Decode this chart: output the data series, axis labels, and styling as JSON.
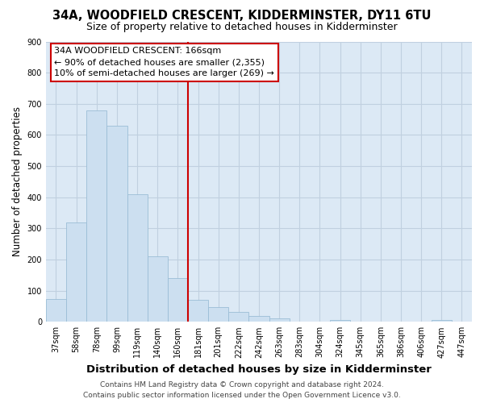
{
  "title": "34A, WOODFIELD CRESCENT, KIDDERMINSTER, DY11 6TU",
  "subtitle": "Size of property relative to detached houses in Kidderminster",
  "xlabel": "Distribution of detached houses by size in Kidderminster",
  "ylabel": "Number of detached properties",
  "footer_line1": "Contains HM Land Registry data © Crown copyright and database right 2024.",
  "footer_line2": "Contains public sector information licensed under the Open Government Licence v3.0.",
  "bar_labels": [
    "37sqm",
    "58sqm",
    "78sqm",
    "99sqm",
    "119sqm",
    "140sqm",
    "160sqm",
    "181sqm",
    "201sqm",
    "222sqm",
    "242sqm",
    "263sqm",
    "283sqm",
    "304sqm",
    "324sqm",
    "345sqm",
    "365sqm",
    "386sqm",
    "406sqm",
    "427sqm",
    "447sqm"
  ],
  "bar_values": [
    72,
    320,
    680,
    630,
    410,
    210,
    140,
    70,
    48,
    33,
    20,
    10,
    0,
    0,
    5,
    0,
    0,
    0,
    0,
    5,
    0
  ],
  "bar_color": "#ccdff0",
  "bar_edge_color": "#9bbdd6",
  "vline_pos": 7.0,
  "vline_color": "#cc0000",
  "annotation_title": "34A WOODFIELD CRESCENT: 166sqm",
  "annotation_line1": "← 90% of detached houses are smaller (2,355)",
  "annotation_line2": "10% of semi-detached houses are larger (269) →",
  "annotation_box_edge": "#cc0000",
  "ylim": [
    0,
    900
  ],
  "yticks": [
    0,
    100,
    200,
    300,
    400,
    500,
    600,
    700,
    800,
    900
  ],
  "background_color": "#ffffff",
  "plot_bg_color": "#dce9f5",
  "grid_color": "#c0d0e0",
  "title_fontsize": 10.5,
  "subtitle_fontsize": 9,
  "xlabel_fontsize": 9.5,
  "ylabel_fontsize": 8.5,
  "tick_fontsize": 7,
  "footer_fontsize": 6.5,
  "annotation_fontsize": 8
}
